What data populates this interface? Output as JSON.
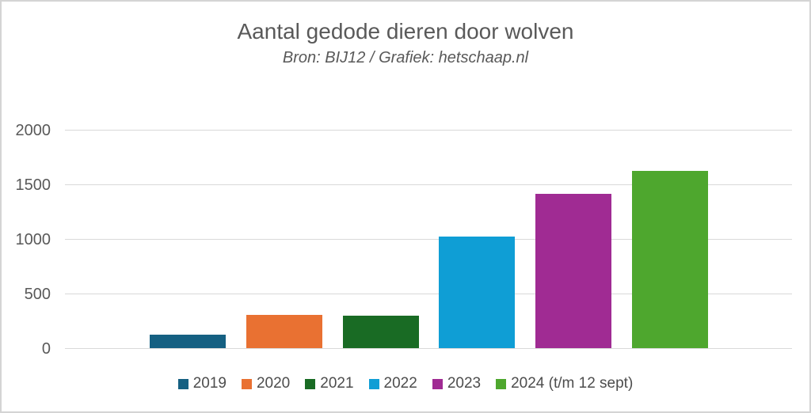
{
  "chart_data": {
    "type": "bar",
    "title": "Aantal gedode dieren door wolven",
    "subtitle": "Bron: BIJ12 / Grafiek: hetschaap.nl",
    "categories": [
      "2019",
      "2020",
      "2021",
      "2022",
      "2023",
      "2024 (t/m 12 sept)"
    ],
    "values": [
      125,
      305,
      300,
      1020,
      1410,
      1620
    ],
    "colors": [
      "#156082",
      "#E97132",
      "#196B24",
      "#0F9ED5",
      "#A02B93",
      "#4EA72E"
    ],
    "xlabel": "",
    "ylabel": "",
    "ylim": [
      0,
      2000
    ],
    "yticks": [
      0,
      500,
      1000,
      1500,
      2000
    ],
    "grid": true,
    "legend_position": "bottom",
    "text_color": "#595959",
    "gridline_color": "#D9D9D9",
    "background_color": "#FFFFFF"
  }
}
